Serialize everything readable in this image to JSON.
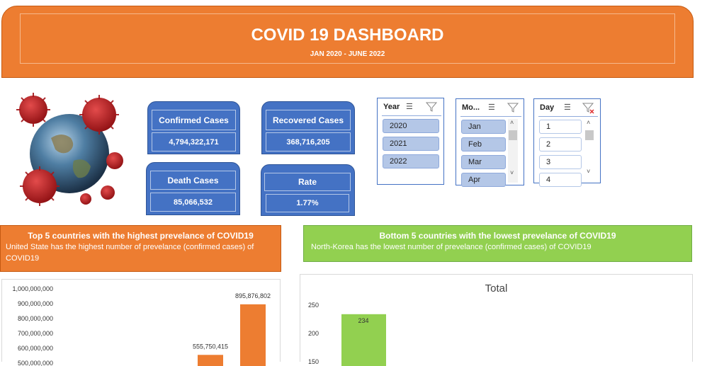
{
  "header": {
    "title": "COVID 19 DASHBOARD",
    "subtitle": "JAN 2020 - JUNE 2022"
  },
  "kpis": {
    "confirmed": {
      "label": "Confirmed Cases",
      "value": "4,794,322,171"
    },
    "recovered": {
      "label": "Recovered Cases",
      "value": "368,716,205"
    },
    "death": {
      "label": "Death Cases",
      "value": "85,066,532"
    },
    "rate": {
      "label": "Rate",
      "value": "1.77%"
    }
  },
  "slicers": {
    "year": {
      "title": "Year",
      "items": [
        "2020",
        "2021",
        "2022"
      ]
    },
    "month": {
      "title": "Mo...",
      "items": [
        "Jan",
        "Feb",
        "Mar",
        "Apr"
      ]
    },
    "day": {
      "title": "Day",
      "items": [
        "1",
        "2",
        "3",
        "4"
      ]
    }
  },
  "icons": {
    "multi_select": "multi-select-icon",
    "clear_filter": "clear-filter-icon",
    "scroll_up": "scroll-up-icon",
    "scroll_down": "scroll-down-icon"
  },
  "sections": {
    "top5": {
      "title": "Top 5 countries with the highest prevelance of COVID19",
      "text": "United State has the highest number of prevelance (confirmed cases) of COVID19"
    },
    "bottom5": {
      "title": "Bottom 5 countries with the lowest prevelance of COVID19",
      "text": "North-Korea has the lowest number of prevelance (confirmed cases) of COVID19"
    }
  },
  "colors": {
    "orange": "#ed7d31",
    "blue": "#4472c4",
    "green": "#92d050"
  },
  "chart_data": [
    {
      "type": "bar",
      "title": "",
      "y_ticks": [
        "1,000,000,000",
        "900,000,000",
        "800,000,000",
        "700,000,000",
        "600,000,000",
        "500,000,000"
      ],
      "ylim": [
        0,
        1000000000
      ],
      "values": [
        555750415,
        895876802
      ],
      "data_labels": [
        "555,750,415",
        "895,876,802"
      ],
      "color": "#ed7d31"
    },
    {
      "type": "bar",
      "title": "Total",
      "y_ticks": [
        "250",
        "200",
        "150"
      ],
      "ylim": [
        0,
        250
      ],
      "values": [
        234
      ],
      "data_labels": [
        "234"
      ],
      "color": "#92d050"
    }
  ]
}
